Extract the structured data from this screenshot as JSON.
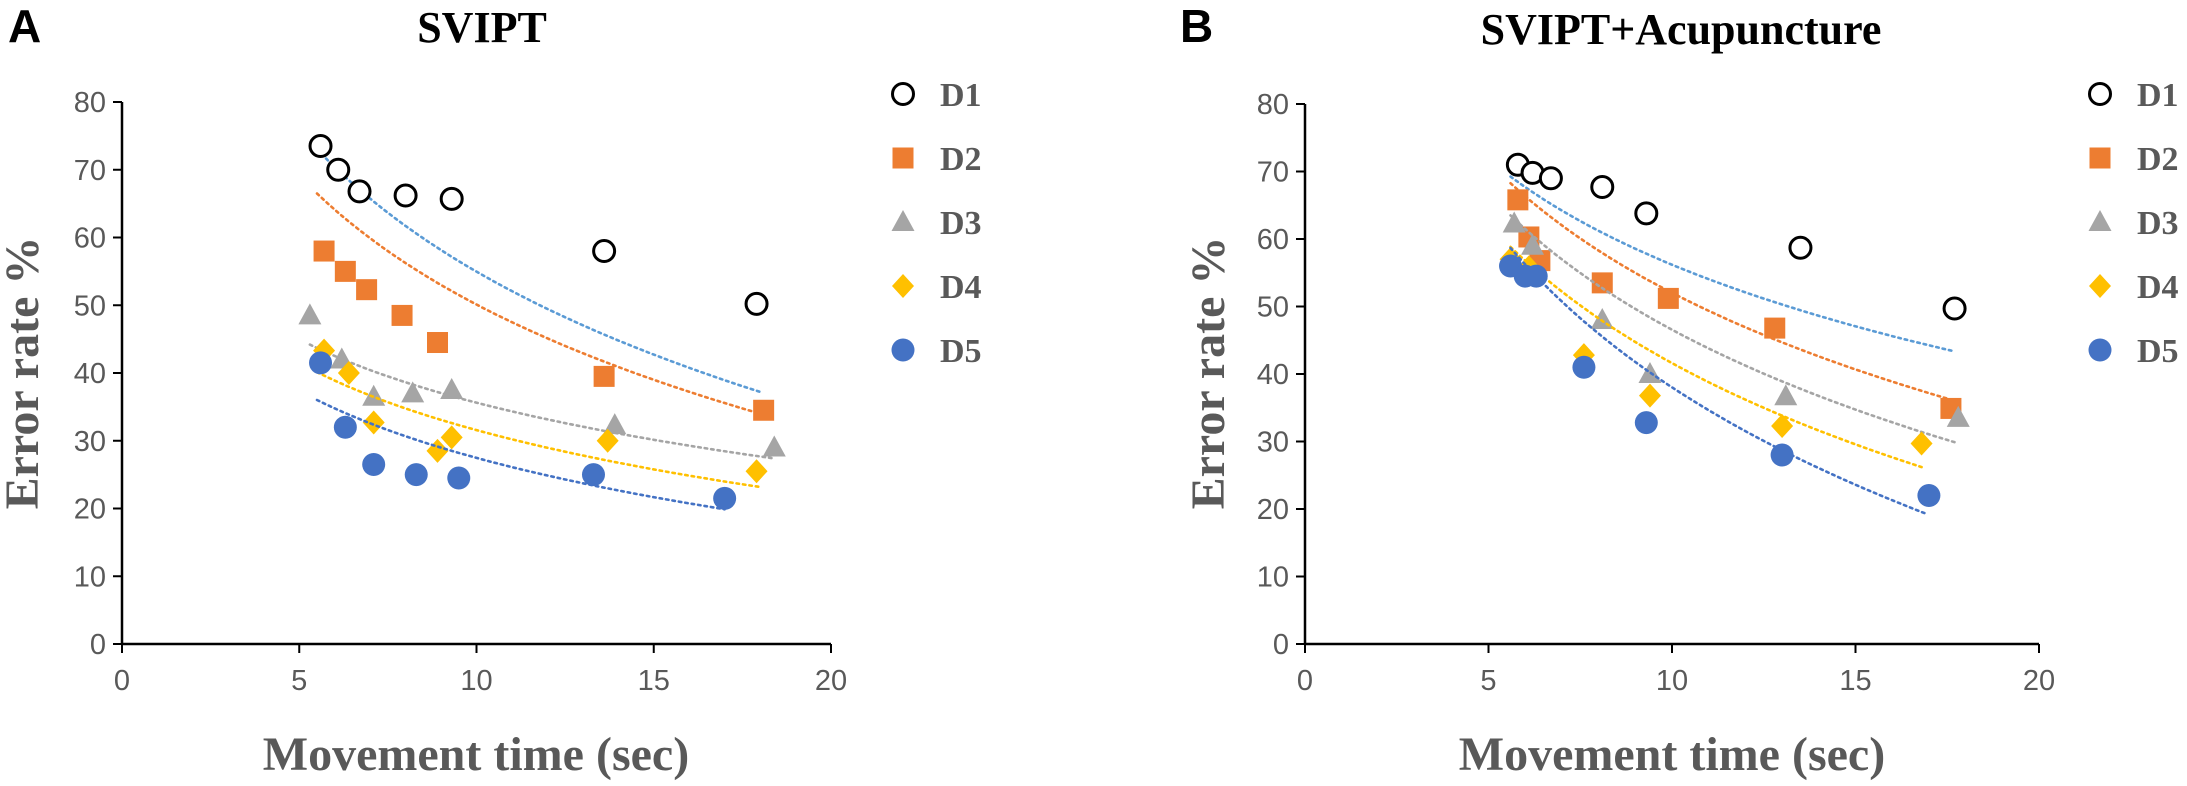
{
  "chart_data": [
    {
      "type": "scatter",
      "panel_label": "A",
      "title": "SVIPT",
      "xlabel": "Movement time (sec)",
      "ylabel": "Error rate %",
      "xlim": [
        0,
        20
      ],
      "ylim": [
        0,
        80
      ],
      "xticks": [
        "0",
        "5",
        "10",
        "15",
        "20"
      ],
      "yticks": [
        "0",
        "10",
        "20",
        "30",
        "40",
        "50",
        "60",
        "70",
        "80"
      ],
      "grid": false,
      "legend_position": "right",
      "series": [
        {
          "name": "D1",
          "marker": "circle-open",
          "color": "#000000",
          "trend_color": "#5B9BD5",
          "x": [
            5.6,
            6.1,
            6.7,
            8.0,
            9.3,
            13.6,
            17.9
          ],
          "y": [
            73.5,
            70.0,
            66.8,
            66.2,
            65.7,
            58.0,
            50.2
          ],
          "trend": {
            "x1": 5.5,
            "x2": 18.0,
            "a": 124.5,
            "b": 30.2
          }
        },
        {
          "name": "D2",
          "marker": "square",
          "color": "#ED7D31",
          "trend_color": "#ED7D31",
          "x": [
            5.7,
            6.3,
            6.9,
            7.9,
            8.9,
            13.6,
            18.1
          ],
          "y": [
            58.0,
            55.0,
            52.3,
            48.5,
            44.5,
            39.5,
            34.5
          ],
          "trend": {
            "x1": 5.5,
            "x2": 18.0,
            "a": 113.2,
            "b": 27.4
          }
        },
        {
          "name": "D3",
          "marker": "triangle",
          "color": "#A5A5A5",
          "trend_color": "#A5A5A5",
          "x": [
            5.3,
            6.2,
            7.1,
            8.2,
            9.3,
            13.9,
            18.4
          ],
          "y": [
            48.5,
            42.0,
            36.5,
            37.0,
            37.5,
            32.3,
            29.0
          ],
          "trend": {
            "x1": 5.3,
            "x2": 18.4,
            "a": 66.7,
            "b": 13.5
          }
        },
        {
          "name": "D4",
          "marker": "diamond",
          "color": "#FFC000",
          "trend_color": "#FFC000",
          "x": [
            5.7,
            6.4,
            7.1,
            8.9,
            9.3,
            13.7,
            17.9
          ],
          "y": [
            43.3,
            40.0,
            32.7,
            28.5,
            30.5,
            30.0,
            25.5
          ],
          "trend": {
            "x1": 5.5,
            "x2": 18.0,
            "a": 64.5,
            "b": 14.3
          }
        },
        {
          "name": "D5",
          "marker": "circle",
          "color": "#4472C4",
          "trend_color": "#4472C4",
          "x": [
            5.6,
            6.3,
            7.1,
            8.3,
            9.5,
            13.3,
            17.0
          ],
          "y": [
            41.5,
            32.0,
            26.5,
            25.0,
            24.5,
            25.0,
            21.5
          ],
          "trend": {
            "x1": 5.5,
            "x2": 17.0,
            "a": 60.4,
            "b": 14.3
          }
        }
      ]
    },
    {
      "type": "scatter",
      "panel_label": "B",
      "title": "SVIPT+Acupuncture",
      "xlabel": "Movement time (sec)",
      "ylabel": "Error rate %",
      "xlim": [
        0,
        20
      ],
      "ylim": [
        0,
        80
      ],
      "xticks": [
        "0",
        "5",
        "10",
        "15",
        "20"
      ],
      "yticks": [
        "0",
        "10",
        "20",
        "30",
        "40",
        "50",
        "60",
        "70",
        "80"
      ],
      "grid": false,
      "legend_position": "right",
      "series": [
        {
          "name": "D1",
          "marker": "circle-open",
          "color": "#000000",
          "trend_color": "#5B9BD5",
          "x": [
            5.8,
            6.2,
            6.7,
            8.1,
            9.3,
            13.5,
            17.7
          ],
          "y": [
            71.0,
            69.8,
            69.0,
            67.7,
            63.8,
            58.7,
            49.7
          ],
          "trend": {
            "x1": 5.6,
            "x2": 17.7,
            "a": 108.0,
            "b": 22.5
          }
        },
        {
          "name": "D2",
          "marker": "square",
          "color": "#ED7D31",
          "trend_color": "#ED7D31",
          "x": [
            5.8,
            6.1,
            6.4,
            8.1,
            9.9,
            12.8,
            17.6
          ],
          "y": [
            65.8,
            60.3,
            56.8,
            53.5,
            51.2,
            46.8,
            34.9
          ],
          "trend": {
            "x1": 5.6,
            "x2": 17.6,
            "a": 116.5,
            "b": 28.0
          }
        },
        {
          "name": "D3",
          "marker": "triangle",
          "color": "#A5A5A5",
          "trend_color": "#A5A5A5",
          "x": [
            5.7,
            6.2,
            8.1,
            9.4,
            13.1,
            17.8
          ],
          "y": [
            62.3,
            59.0,
            48.0,
            40.0,
            36.7,
            33.5
          ],
          "trend": {
            "x1": 5.6,
            "x2": 17.7,
            "a": 113.8,
            "b": 29.2
          }
        },
        {
          "name": "D4",
          "marker": "diamond",
          "color": "#FFC000",
          "trend_color": "#FFC000",
          "x": [
            5.6,
            6.1,
            7.6,
            9.4,
            13.0,
            16.8
          ],
          "y": [
            57.0,
            55.8,
            42.8,
            36.8,
            32.3,
            29.7
          ],
          "trend": {
            "x1": 5.6,
            "x2": 16.8,
            "a": 110.0,
            "b": 29.7
          }
        },
        {
          "name": "D5",
          "marker": "circle",
          "color": "#4472C4",
          "trend_color": "#4472C4",
          "x": [
            5.6,
            6.0,
            6.3,
            7.6,
            9.3,
            13.0,
            17.0
          ],
          "y": [
            56.0,
            54.5,
            54.5,
            41.0,
            32.8,
            28.0,
            22.0
          ],
          "trend": {
            "x1": 5.6,
            "x2": 16.9,
            "a": 120.0,
            "b": 35.6
          }
        }
      ]
    }
  ]
}
